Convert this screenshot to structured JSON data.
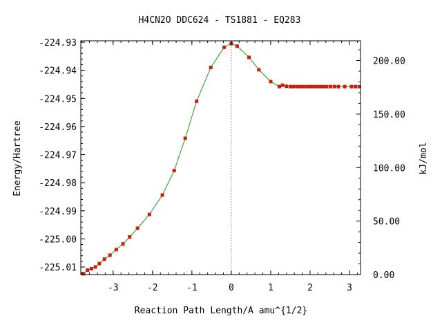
{
  "chart_data": {
    "type": "line",
    "title": "H4CN2O   DDC624 - TS1881 - EQ283",
    "xlabel": "Reaction Path Length/A amu^{1/2}",
    "ylabel": "Energy/Hartree",
    "y2label": "kJ/mol",
    "xlim": [
      -3.82,
      3.28
    ],
    "ylim": [
      -225.0127,
      -224.9295
    ],
    "x_ticks": [
      "-3",
      "-2",
      "-1",
      "0",
      "1",
      "2",
      "3"
    ],
    "y_ticks": [
      "-224.93",
      "-224.94",
      "-224.95",
      "-224.96",
      "-224.97",
      "-224.98",
      "-224.99",
      "-225.00",
      "-225.01"
    ],
    "y2_ticks": [
      "0.00",
      "50.00",
      "100.00",
      "150.00",
      "200.00"
    ],
    "y2_zero_hartree": -225.0127,
    "kj_per_hartree": 2625.5,
    "transition_state_x": 0,
    "colors": {
      "curve": "#1a9a1a",
      "marker": "#c8200a",
      "ts_line": "#999999",
      "axes": "#000000"
    },
    "series": [
      {
        "points": [
          [
            -3.75,
            -225.0124
          ],
          [
            -3.65,
            -225.0111
          ],
          [
            -3.55,
            -225.0106
          ],
          [
            -3.45,
            -225.01
          ],
          [
            -3.35,
            -225.0088
          ],
          [
            -3.22,
            -225.0072
          ],
          [
            -3.08,
            -225.0058
          ],
          [
            -2.92,
            -225.0038
          ],
          [
            -2.75,
            -225.0018
          ],
          [
            -2.58,
            -224.9993
          ],
          [
            -2.38,
            -224.9962
          ],
          [
            -2.08,
            -224.9913
          ],
          [
            -1.75,
            -224.9844
          ],
          [
            -1.45,
            -224.9757
          ],
          [
            -1.17,
            -224.9642
          ],
          [
            -0.88,
            -224.951
          ],
          [
            -0.52,
            -224.939
          ],
          [
            -0.18,
            -224.9318
          ],
          [
            0.0,
            -224.9305
          ],
          [
            0.15,
            -224.9314
          ],
          [
            0.45,
            -224.9354
          ],
          [
            0.7,
            -224.9398
          ],
          [
            1.0,
            -224.944
          ],
          [
            1.22,
            -224.9458
          ],
          [
            1.3,
            -224.9453
          ],
          [
            1.4,
            -224.9457
          ],
          [
            1.5,
            -224.9458
          ],
          [
            1.58,
            -224.9458
          ],
          [
            1.67,
            -224.9458
          ],
          [
            1.75,
            -224.9458
          ],
          [
            1.83,
            -224.9458
          ],
          [
            1.92,
            -224.9458
          ],
          [
            2.0,
            -224.9458
          ],
          [
            2.08,
            -224.9458
          ],
          [
            2.17,
            -224.9458
          ],
          [
            2.25,
            -224.9458
          ],
          [
            2.33,
            -224.9458
          ],
          [
            2.42,
            -224.9458
          ],
          [
            2.52,
            -224.9458
          ],
          [
            2.62,
            -224.9458
          ],
          [
            2.72,
            -224.9458
          ],
          [
            2.88,
            -224.9458
          ],
          [
            3.05,
            -224.9458
          ],
          [
            3.15,
            -224.9458
          ],
          [
            3.25,
            -224.9458
          ]
        ]
      }
    ]
  }
}
